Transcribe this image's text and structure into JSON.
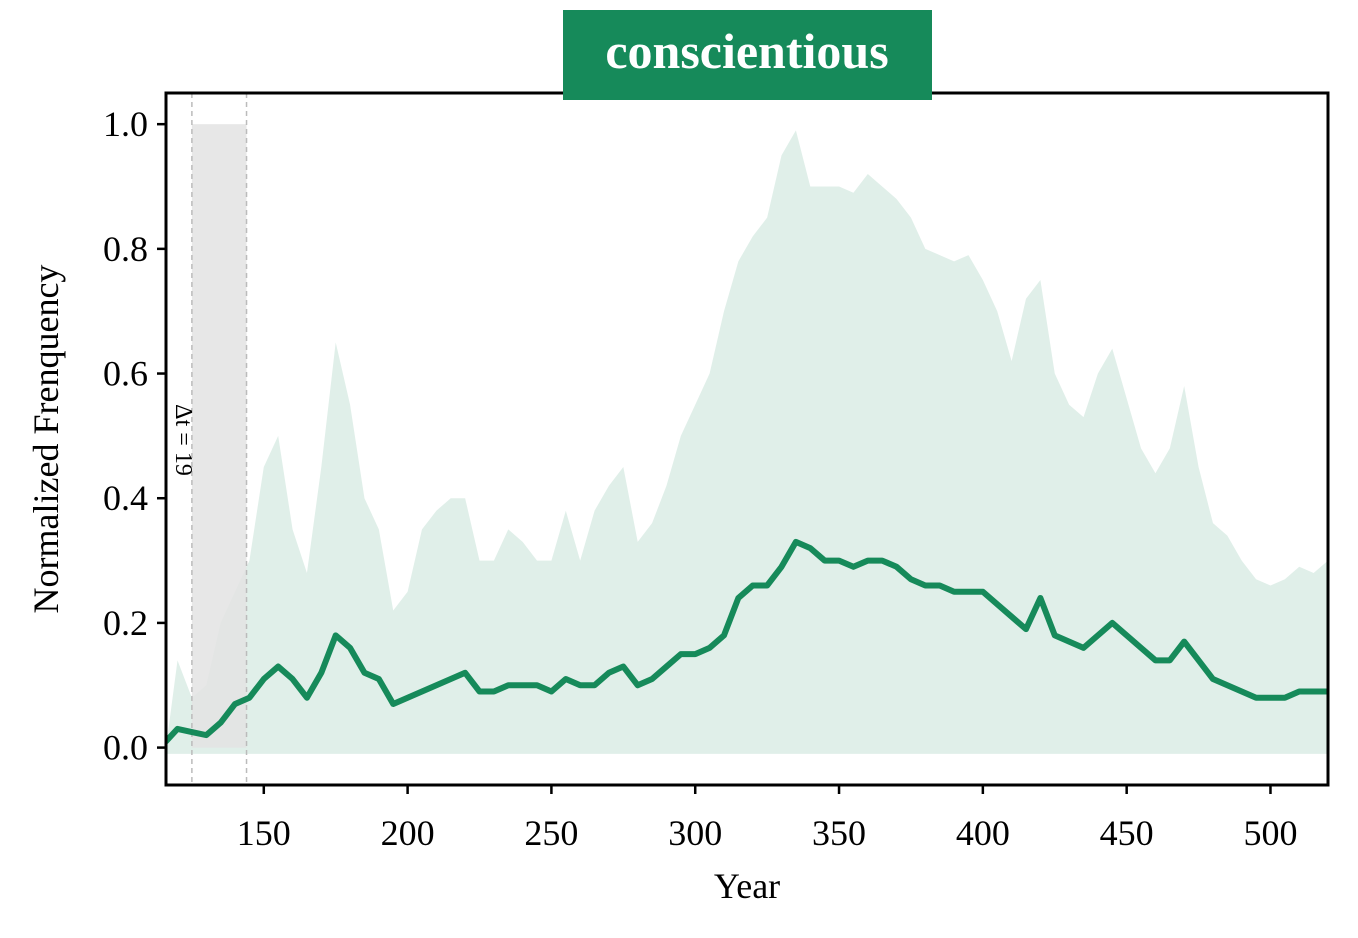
{
  "chart_data": {
    "type": "line",
    "title": "conscientious",
    "xlabel": "Year",
    "ylabel": "Normalized Frenquency",
    "annotation": "Δt = 19",
    "span": [
      125,
      144
    ],
    "color": "#168a5a",
    "band_color": "#e0efe9",
    "span_color": "#e3e3e3",
    "xlim": [
      116,
      520
    ],
    "ylim": [
      -0.06,
      1.05
    ],
    "xticks": [
      150,
      200,
      250,
      300,
      350,
      400,
      450,
      500
    ],
    "yticks": [
      {
        "value": 0,
        "label": "0.0"
      },
      0.2,
      0.4,
      0.6,
      0.8,
      {
        "value": 1,
        "label": "1.0"
      }
    ],
    "x": [
      116,
      120,
      125,
      130,
      135,
      140,
      145,
      150,
      155,
      160,
      165,
      170,
      175,
      180,
      185,
      190,
      195,
      200,
      205,
      210,
      215,
      220,
      225,
      230,
      235,
      240,
      245,
      250,
      255,
      260,
      265,
      270,
      275,
      280,
      285,
      290,
      295,
      300,
      305,
      310,
      315,
      320,
      325,
      330,
      335,
      340,
      345,
      350,
      355,
      360,
      365,
      370,
      375,
      380,
      385,
      390,
      395,
      400,
      405,
      410,
      415,
      420,
      425,
      430,
      435,
      440,
      445,
      450,
      455,
      460,
      465,
      470,
      475,
      480,
      485,
      490,
      495,
      500,
      505,
      510,
      515,
      520
    ],
    "values": [
      0.01,
      0.03,
      0.025,
      0.02,
      0.04,
      0.07,
      0.08,
      0.11,
      0.13,
      0.11,
      0.08,
      0.12,
      0.18,
      0.16,
      0.12,
      0.11,
      0.07,
      0.08,
      0.09,
      0.1,
      0.11,
      0.12,
      0.09,
      0.09,
      0.1,
      0.1,
      0.1,
      0.09,
      0.11,
      0.1,
      0.1,
      0.12,
      0.13,
      0.1,
      0.11,
      0.13,
      0.15,
      0.15,
      0.16,
      0.18,
      0.24,
      0.26,
      0.26,
      0.29,
      0.33,
      0.32,
      0.3,
      0.3,
      0.29,
      0.3,
      0.3,
      0.29,
      0.27,
      0.26,
      0.26,
      0.25,
      0.25,
      0.25,
      0.23,
      0.21,
      0.19,
      0.24,
      0.18,
      0.17,
      0.16,
      0.18,
      0.2,
      0.18,
      0.16,
      0.14,
      0.14,
      0.17,
      0.14,
      0.11,
      0.1,
      0.09,
      0.08,
      0.08,
      0.08,
      0.09,
      0.09,
      0.09
    ],
    "band_upper": [
      0.0,
      0.14,
      0.08,
      0.1,
      0.2,
      0.25,
      0.3,
      0.45,
      0.5,
      0.35,
      0.28,
      0.45,
      0.65,
      0.55,
      0.4,
      0.35,
      0.22,
      0.25,
      0.35,
      0.38,
      0.4,
      0.4,
      0.3,
      0.3,
      0.35,
      0.33,
      0.3,
      0.3,
      0.38,
      0.3,
      0.38,
      0.42,
      0.45,
      0.33,
      0.36,
      0.42,
      0.5,
      0.55,
      0.6,
      0.7,
      0.78,
      0.82,
      0.85,
      0.95,
      0.99,
      0.9,
      0.9,
      0.9,
      0.89,
      0.92,
      0.9,
      0.88,
      0.85,
      0.8,
      0.79,
      0.78,
      0.79,
      0.75,
      0.7,
      0.62,
      0.72,
      0.75,
      0.6,
      0.55,
      0.53,
      0.6,
      0.64,
      0.56,
      0.48,
      0.44,
      0.48,
      0.58,
      0.45,
      0.36,
      0.34,
      0.3,
      0.27,
      0.26,
      0.27,
      0.29,
      0.28,
      0.3
    ],
    "band_lower": [
      -0.01,
      -0.01,
      -0.01,
      -0.01,
      -0.01,
      -0.01,
      -0.01,
      -0.01,
      -0.01,
      -0.01,
      -0.01,
      -0.01,
      -0.01,
      -0.01,
      -0.01,
      -0.01,
      -0.01,
      -0.01,
      -0.01,
      -0.01,
      -0.01,
      -0.01,
      -0.01,
      -0.01,
      -0.01,
      -0.01,
      -0.01,
      -0.01,
      -0.01,
      -0.01,
      -0.01,
      -0.01,
      -0.01,
      -0.01,
      -0.01,
      -0.01,
      -0.01,
      -0.01,
      -0.01,
      -0.01,
      -0.01,
      -0.01,
      -0.01,
      -0.01,
      -0.01,
      -0.01,
      -0.01,
      -0.01,
      -0.01,
      -0.01,
      -0.01,
      -0.01,
      -0.01,
      -0.01,
      -0.01,
      -0.01,
      -0.01,
      -0.01,
      -0.01,
      -0.01,
      -0.01,
      -0.01,
      -0.01,
      -0.01,
      -0.01,
      -0.01,
      -0.01,
      -0.01,
      -0.01,
      -0.01,
      -0.01,
      -0.01,
      -0.01,
      -0.01,
      -0.01,
      -0.01,
      -0.01,
      -0.01,
      -0.01,
      -0.01,
      -0.01,
      -0.01
    ]
  }
}
